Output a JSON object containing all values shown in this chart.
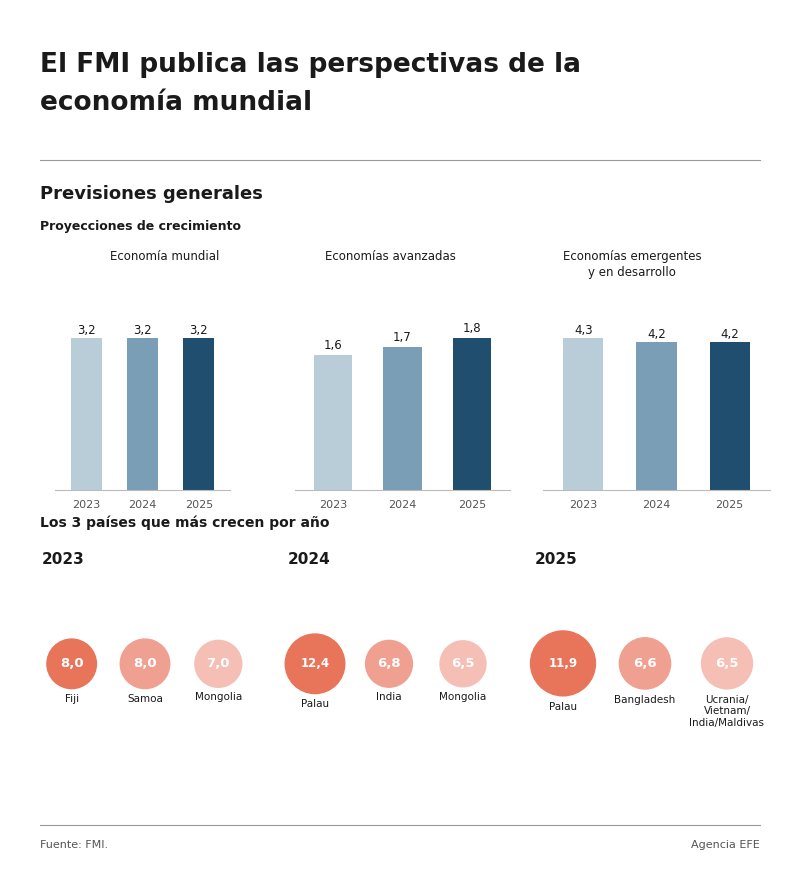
{
  "title_line1": "El FMI publica las perspectivas de la",
  "title_line2": "economía mundial",
  "section1_title": "Previsiones generales",
  "section1_subtitle": "Proyecciones de crecimiento",
  "bar_groups": [
    {
      "title": "Economía mundial",
      "years": [
        "2023",
        "2024",
        "2025"
      ],
      "values": [
        3.2,
        3.2,
        3.2
      ],
      "labels": [
        "3,2",
        "3,2",
        "3,2"
      ]
    },
    {
      "title": "Economías avanzadas",
      "years": [
        "2023",
        "2024",
        "2025"
      ],
      "values": [
        1.6,
        1.7,
        1.8
      ],
      "labels": [
        "1,6",
        "1,7",
        "1,8"
      ]
    },
    {
      "title": "Economías emergentes\ny en desarrollo",
      "years": [
        "2023",
        "2024",
        "2025"
      ],
      "values": [
        4.3,
        4.2,
        4.2
      ],
      "labels": [
        "4,3",
        "4,2",
        "4,2"
      ]
    }
  ],
  "bar_colors": [
    "#b8cdd8",
    "#7a9eb5",
    "#1f4e6e"
  ],
  "section2_title": "Los 3 países que más crecen por año",
  "bubble_groups": [
    {
      "year": "2023",
      "countries": [
        "Fiji",
        "Samoa",
        "Mongolia"
      ],
      "values": [
        8.0,
        8.0,
        7.0
      ],
      "labels": [
        "8,0",
        "8,0",
        "7,0"
      ]
    },
    {
      "year": "2024",
      "countries": [
        "Palau",
        "India",
        "Mongolia"
      ],
      "values": [
        12.4,
        6.8,
        6.5
      ],
      "labels": [
        "12,4",
        "6,8",
        "6,5"
      ]
    },
    {
      "year": "2025",
      "countries": [
        "Palau",
        "Bangladesh",
        "Ucrania/\nVietnam/\nIndia/Maldivas"
      ],
      "values": [
        11.9,
        6.6,
        6.5
      ],
      "labels": [
        "11,9",
        "6,6",
        "6,5"
      ]
    }
  ],
  "bubble_colors": [
    "#e8745a",
    "#f0a090",
    "#f5bfb5"
  ],
  "footer_left": "Fuente: FMI.",
  "footer_right": "Agencia EFE",
  "bg_color": "#ffffff",
  "text_color": "#1a1a1a",
  "top_bar_color": "#1a1a1a",
  "divider_color": "#999999"
}
